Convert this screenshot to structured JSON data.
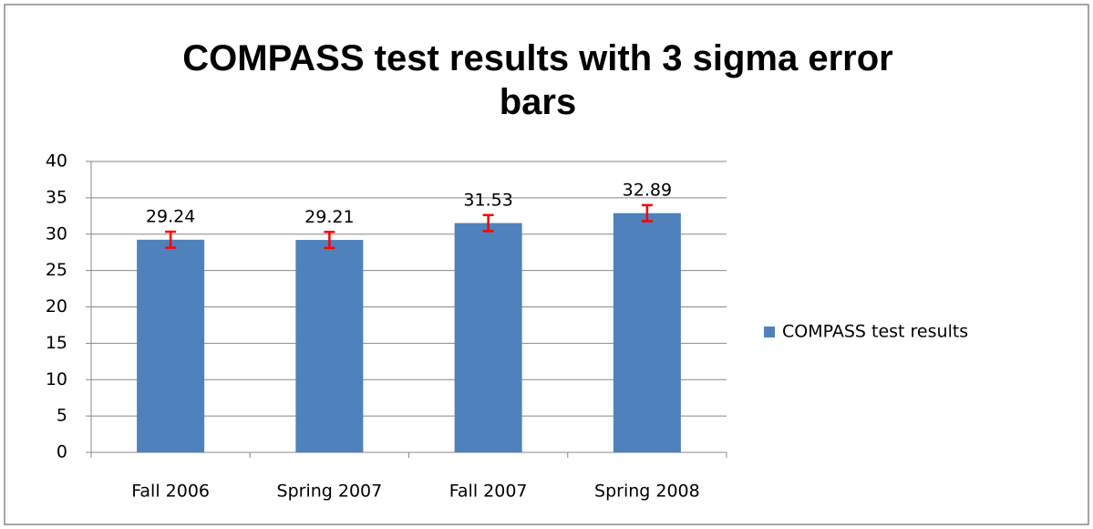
{
  "chart_data": {
    "type": "bar",
    "title": "COMPASS test results with 3 sigma error bars",
    "categories": [
      "Fall 2006",
      "Spring 2007",
      "Fall 2007",
      "Spring 2008"
    ],
    "series": [
      {
        "name": "COMPASS test results",
        "color": "#4f81bd",
        "values": [
          29.24,
          29.21,
          31.53,
          32.89
        ],
        "errors": [
          1.1,
          1.1,
          1.1,
          1.1
        ],
        "error_color": "#ff0000"
      }
    ],
    "ylim": [
      0,
      40
    ],
    "yticks": [
      0,
      5,
      10,
      15,
      20,
      25,
      30,
      35,
      40
    ],
    "grid": true,
    "legend": "right"
  }
}
